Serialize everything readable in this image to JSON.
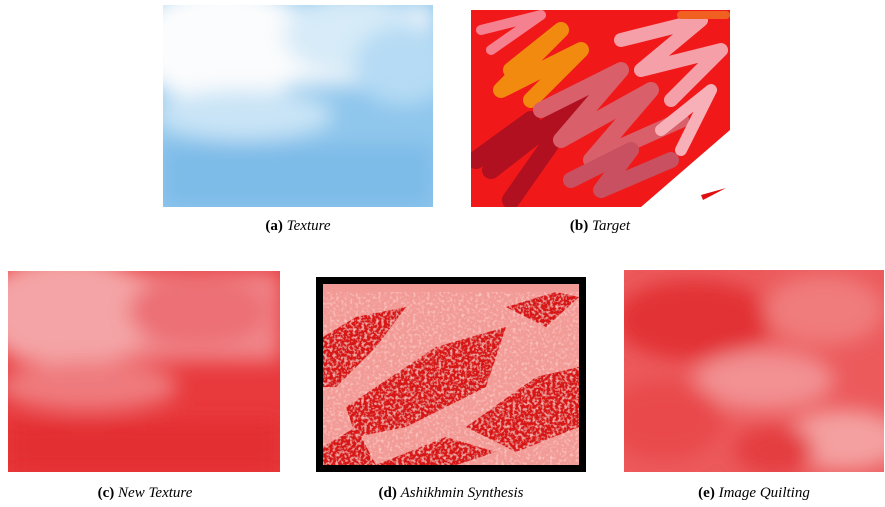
{
  "figure": {
    "panels": [
      {
        "label": "(a)",
        "caption": "Texture"
      },
      {
        "label": "(b)",
        "caption": "Target"
      },
      {
        "label": "(c)",
        "caption": "New Texture"
      },
      {
        "label": "(d)",
        "caption": "Ashikhmin Synthesis"
      },
      {
        "label": "(e)",
        "caption": "Image Quilting"
      }
    ]
  }
}
